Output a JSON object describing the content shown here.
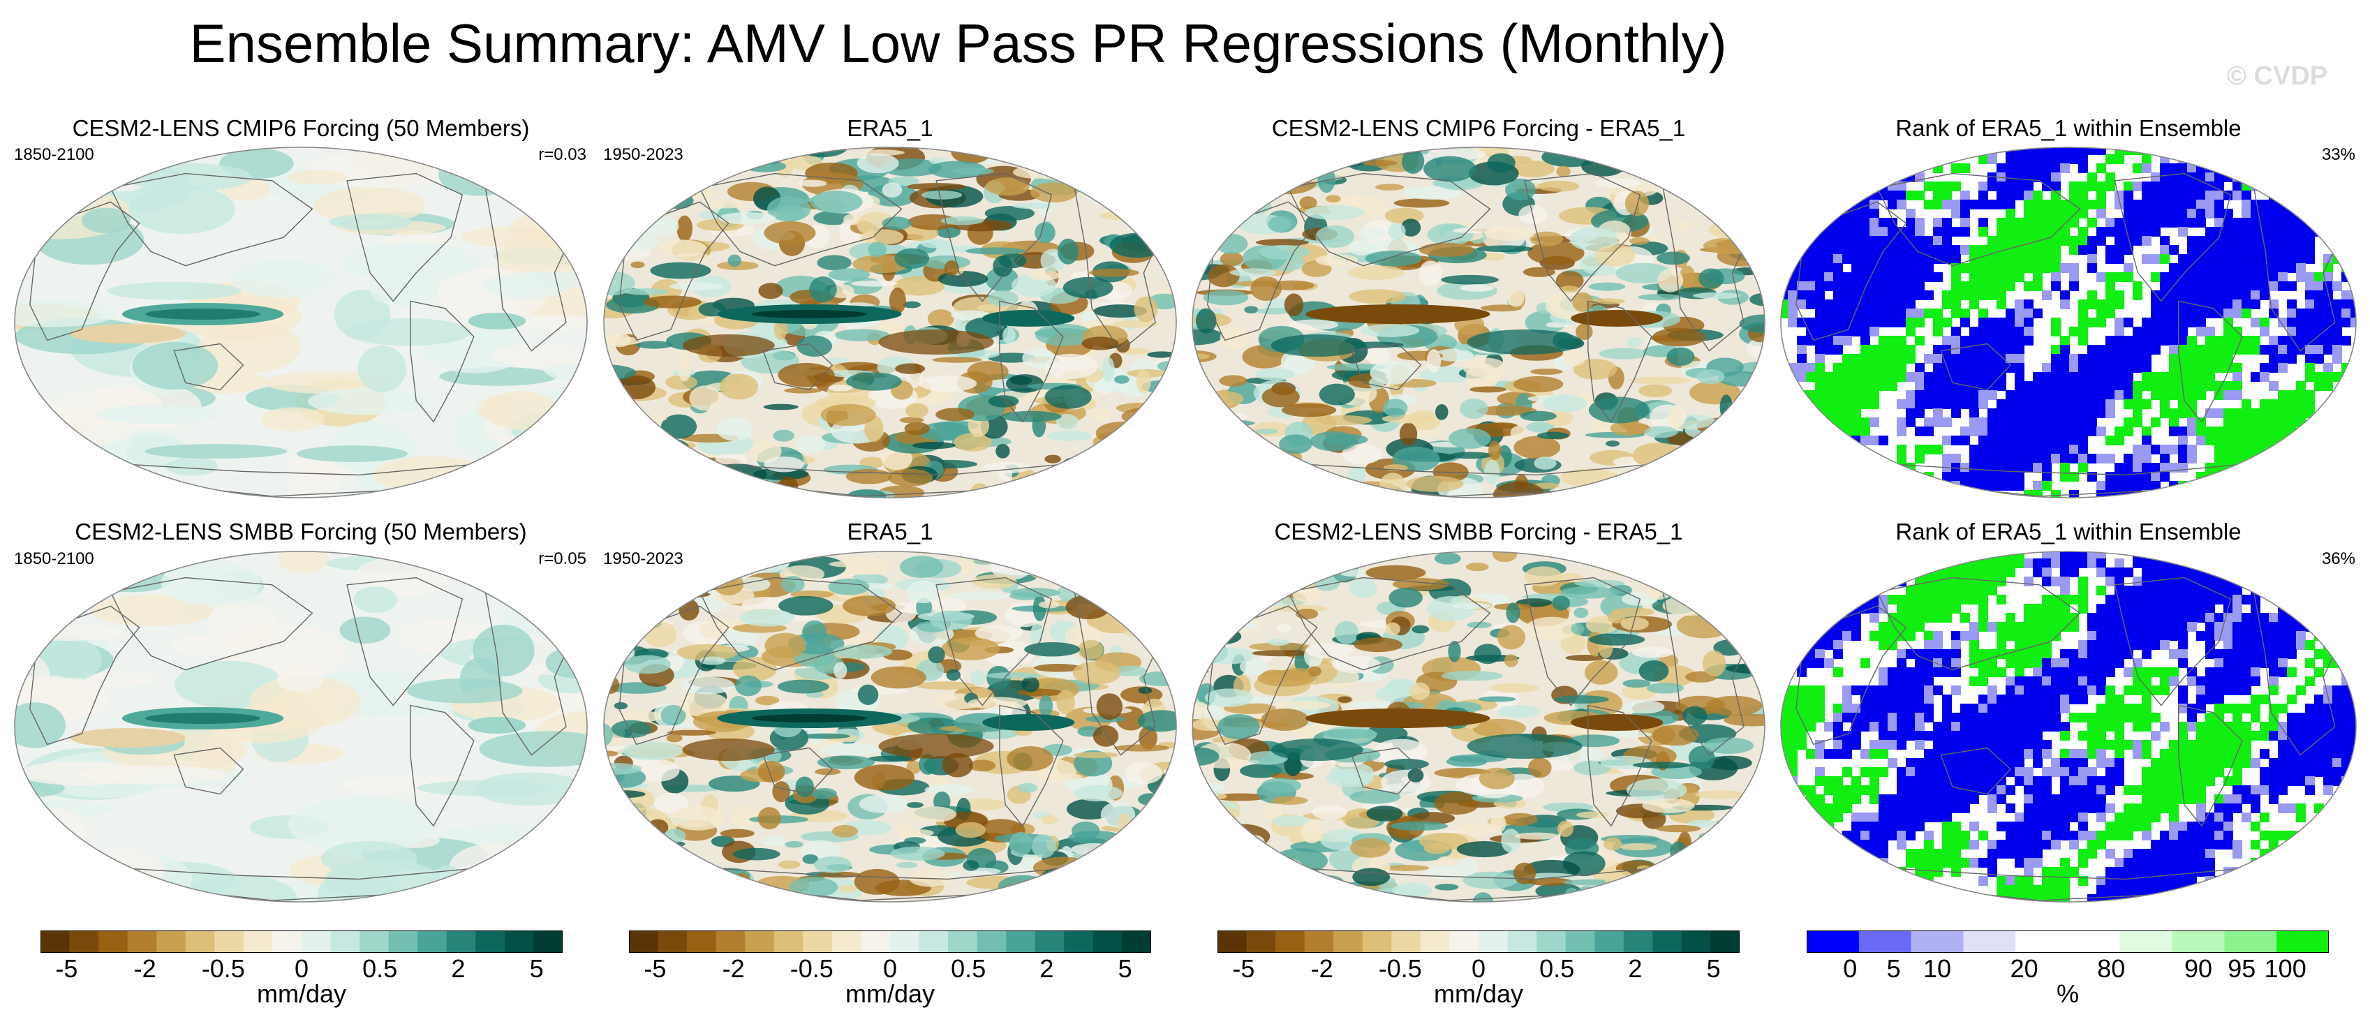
{
  "figure": {
    "title": "Ensemble Summary: AMV Low Pass PR Regressions (Monthly)",
    "watermark": "© CVDP"
  },
  "rows": [
    {
      "panels": [
        {
          "title": "CESM2-LENS CMIP6 Forcing (50 Members)",
          "left_label": "1850-2100",
          "right_label": "r=0.03",
          "style": "ensemble"
        },
        {
          "title": "ERA5_1",
          "left_label": "1950-2023",
          "right_label": "",
          "style": "obs"
        },
        {
          "title": "CESM2-LENS CMIP6 Forcing - ERA5_1",
          "left_label": "",
          "right_label": "",
          "style": "diff"
        },
        {
          "title": "Rank of ERA5_1 within Ensemble",
          "left_label": "",
          "right_label": "33%",
          "style": "rank"
        }
      ]
    },
    {
      "panels": [
        {
          "title": "CESM2-LENS SMBB Forcing (50 Members)",
          "left_label": "1850-2100",
          "right_label": "r=0.05",
          "style": "ensemble"
        },
        {
          "title": "ERA5_1",
          "left_label": "1950-2023",
          "right_label": "",
          "style": "obs"
        },
        {
          "title": "CESM2-LENS SMBB Forcing - ERA5_1",
          "left_label": "",
          "right_label": "",
          "style": "diff"
        },
        {
          "title": "Rank of ERA5_1 within Ensemble",
          "left_label": "",
          "right_label": "36%",
          "style": "rank"
        }
      ]
    }
  ],
  "colorbars": [
    {
      "label": "mm/day",
      "ticks": [
        "-5",
        "-2",
        "-0.5",
        "0",
        "0.5",
        "2",
        "5"
      ],
      "tick_positions": [
        0.05,
        0.2,
        0.35,
        0.5,
        0.65,
        0.8,
        0.95
      ],
      "colors": [
        "#5a3406",
        "#7a4a0c",
        "#976013",
        "#b27f2e",
        "#c9a04f",
        "#ddbf78",
        "#ecd8a4",
        "#f5ead0",
        "#f6f3ec",
        "#e4f2ee",
        "#c6e8e0",
        "#9ed6ca",
        "#72bfb1",
        "#49a398",
        "#268478",
        "#0d675c",
        "#025046",
        "#003c32"
      ]
    },
    {
      "label": "mm/day",
      "ticks": [
        "-5",
        "-2",
        "-0.5",
        "0",
        "0.5",
        "2",
        "5"
      ],
      "tick_positions": [
        0.05,
        0.2,
        0.35,
        0.5,
        0.65,
        0.8,
        0.95
      ],
      "colors": [
        "#5a3406",
        "#7a4a0c",
        "#976013",
        "#b27f2e",
        "#c9a04f",
        "#ddbf78",
        "#ecd8a4",
        "#f5ead0",
        "#f6f3ec",
        "#e4f2ee",
        "#c6e8e0",
        "#9ed6ca",
        "#72bfb1",
        "#49a398",
        "#268478",
        "#0d675c",
        "#025046",
        "#003c32"
      ]
    },
    {
      "label": "mm/day",
      "ticks": [
        "-5",
        "-2",
        "-0.5",
        "0",
        "0.5",
        "2",
        "5"
      ],
      "tick_positions": [
        0.05,
        0.2,
        0.35,
        0.5,
        0.65,
        0.8,
        0.95
      ],
      "colors": [
        "#5a3406",
        "#7a4a0c",
        "#976013",
        "#b27f2e",
        "#c9a04f",
        "#ddbf78",
        "#ecd8a4",
        "#f5ead0",
        "#f6f3ec",
        "#e4f2ee",
        "#c6e8e0",
        "#9ed6ca",
        "#72bfb1",
        "#49a398",
        "#268478",
        "#0d675c",
        "#025046",
        "#003c32"
      ]
    },
    {
      "label": "%",
      "ticks": [
        "0",
        "5",
        "10",
        "20",
        "80",
        "90",
        "95",
        "100"
      ],
      "tick_positions": [
        0.0833,
        0.1667,
        0.25,
        0.4167,
        0.5833,
        0.75,
        0.8333,
        0.9167
      ],
      "colors": [
        "#0000ff",
        "#6a6af7",
        "#b0b0f4",
        "#e0e0f8",
        "#ffffff",
        "#ffffff",
        "#e0fbe0",
        "#b8f8b8",
        "#8cf38c",
        "#11ee11"
      ]
    }
  ],
  "colors": {
    "land_outline": "#666666",
    "map_border": "#000000",
    "ensemble_base": "#f2ece0",
    "rank_blue": "#0000ee",
    "rank_green": "#11ee11"
  }
}
